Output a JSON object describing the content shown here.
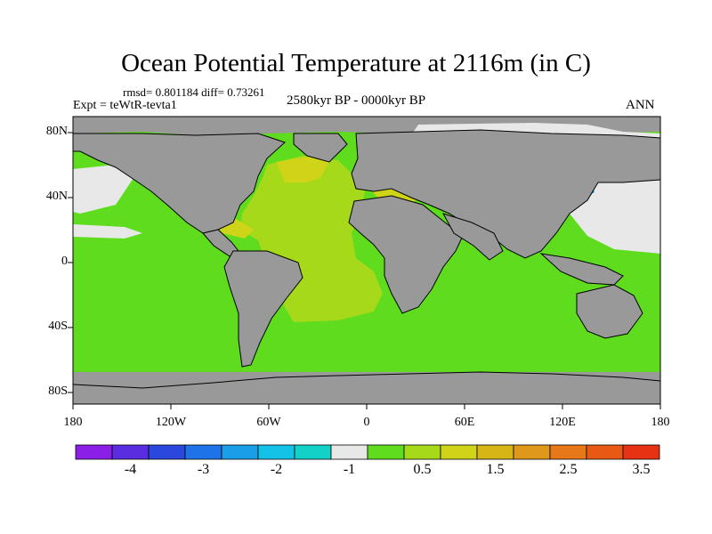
{
  "title": "Ocean Potential Temperature at 2116m (in C)",
  "stats": "rmsd= 0.801184 diff= 0.73261",
  "experiment": "Expt = teWtR-tevta1",
  "period": "2580kyr BP - 0000kyr BP",
  "season": "ANN",
  "lat_labels": [
    "80N",
    "40N",
    "0",
    "40S",
    "80S"
  ],
  "lon_labels": [
    "180",
    "120W",
    "60W",
    "0",
    "60E",
    "120E",
    "180"
  ],
  "colorbar": {
    "colors": [
      "#8b1fe8",
      "#5a2ee0",
      "#2a48de",
      "#1f73e8",
      "#1a9ee8",
      "#14c2e8",
      "#12d2c8",
      "#e8e8e8",
      "#5fdc1e",
      "#a6d91a",
      "#cfd419",
      "#d6b514",
      "#e0981a",
      "#e6781a",
      "#e85a14",
      "#e83214"
    ],
    "labels": [
      "-4",
      "-3",
      "-2",
      "-1",
      "0.5",
      "1.5",
      "2.5",
      "3.5"
    ]
  },
  "map_colors": {
    "land": "#999999",
    "ocean_small_diff": "#5fdc1e",
    "atlantic_warm": "#a6d91a",
    "north_atlantic_warmer": "#cfd419",
    "near_zero": "#e8e8e8",
    "cold_spot": "#1a9ee8"
  }
}
